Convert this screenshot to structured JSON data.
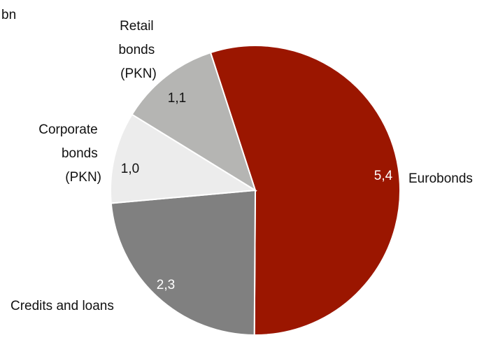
{
  "chart_data": {
    "type": "pie",
    "unit": "bn",
    "categories": [
      "Eurobonds",
      "Credits and loans",
      "Corporate bonds (PKN)",
      "Retail bonds (PKN)"
    ],
    "values": [
      5.4,
      2.3,
      1.0,
      1.1
    ],
    "value_labels": [
      "5,4",
      "2,3",
      "1,0",
      "1,1"
    ],
    "colors": [
      "#9b1600",
      "#808080",
      "#ececec",
      "#b5b5b3"
    ]
  }
}
